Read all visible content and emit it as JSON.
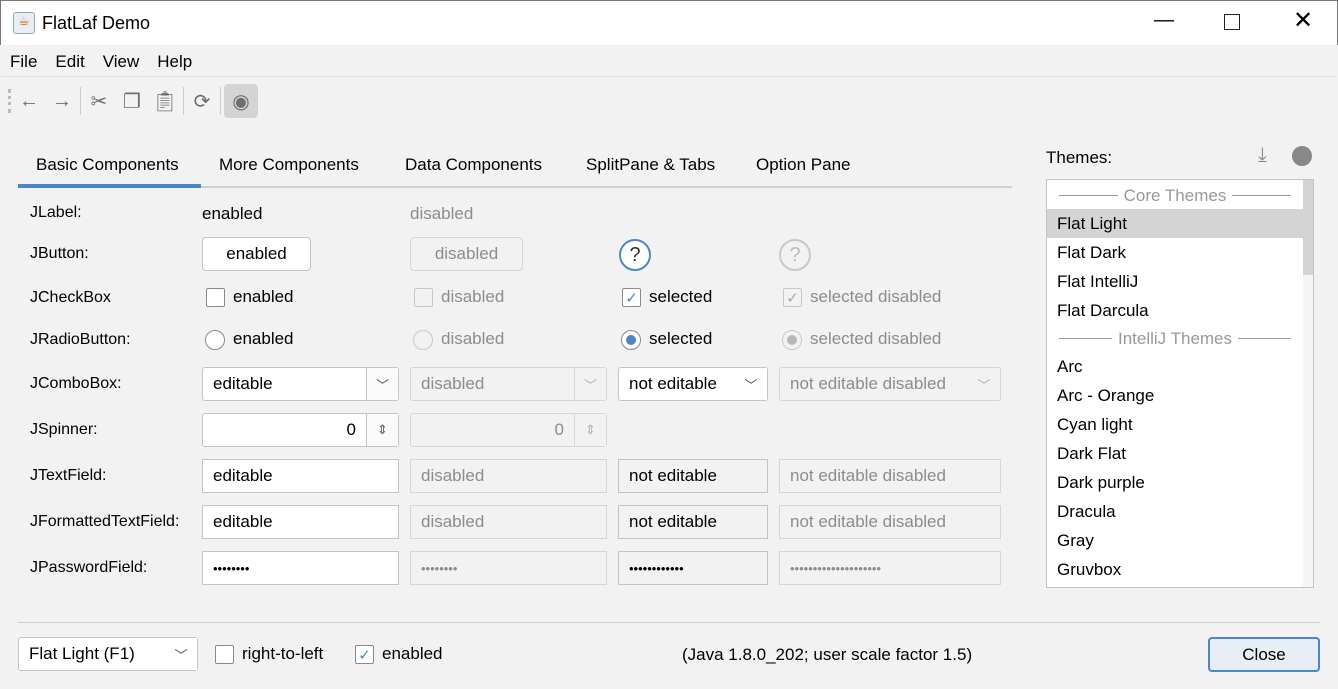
{
  "window": {
    "title": "FlatLaf Demo"
  },
  "menu": [
    "File",
    "Edit",
    "View",
    "Help"
  ],
  "toolbar": {
    "icons": [
      "back-icon",
      "forward-icon",
      "cut-icon",
      "copy-icon",
      "paste-icon",
      "refresh-icon",
      "eye-icon"
    ]
  },
  "tabs": [
    "Basic Components",
    "More Components",
    "Data Components",
    "SplitPane & Tabs",
    "Option Pane"
  ],
  "active_tab": 0,
  "rows": {
    "label": {
      "name": "JLabel:",
      "enabled": "enabled",
      "disabled": "disabled"
    },
    "button": {
      "name": "JButton:",
      "enabled": "enabled",
      "disabled": "disabled",
      "help": "?"
    },
    "checkbox": {
      "name": "JCheckBox",
      "enabled": "enabled",
      "disabled": "disabled",
      "selected": "selected",
      "selected_disabled": "selected disabled"
    },
    "radio": {
      "name": "JRadioButton:",
      "enabled": "enabled",
      "disabled": "disabled",
      "selected": "selected",
      "selected_disabled": "selected disabled"
    },
    "combo": {
      "name": "JComboBox:",
      "editable": "editable",
      "disabled": "disabled",
      "not_editable": "not editable",
      "not_editable_disabled": "not editable disabled"
    },
    "spinner": {
      "name": "JSpinner:",
      "value": "0",
      "disabled_value": "0"
    },
    "textfield": {
      "name": "JTextField:",
      "editable": "editable",
      "disabled": "disabled",
      "not_editable": "not editable",
      "not_editable_disabled": "not editable disabled"
    },
    "formatted": {
      "name": "JFormattedTextField:",
      "editable": "editable",
      "disabled": "disabled",
      "not_editable": "not editable",
      "not_editable_disabled": "not editable disabled"
    },
    "password": {
      "name": "JPasswordField:",
      "editable": "••••••••",
      "disabled": "••••••••",
      "not_editable": "••••••••••••",
      "not_editable_disabled": "••••••••••••••••••••"
    }
  },
  "themes": {
    "label": "Themes:",
    "selected": "Flat Light",
    "items": [
      {
        "header": "Core Themes"
      },
      {
        "name": "Flat Light"
      },
      {
        "name": "Flat Dark"
      },
      {
        "name": "Flat IntelliJ"
      },
      {
        "name": "Flat Darcula"
      },
      {
        "header": "IntelliJ Themes"
      },
      {
        "name": "Arc"
      },
      {
        "name": "Arc - Orange"
      },
      {
        "name": "Cyan light"
      },
      {
        "name": "Dark Flat"
      },
      {
        "name": "Dark purple"
      },
      {
        "name": "Dracula"
      },
      {
        "name": "Gray"
      },
      {
        "name": "Gruvbox"
      }
    ]
  },
  "bottom": {
    "theme_combo": "Flat Light (F1)",
    "rtl": "right-to-left",
    "rtl_checked": false,
    "enabled": "enabled",
    "enabled_checked": true,
    "info": "(Java 1.8.0_202;  user scale factor 1.5)",
    "close": "Close"
  },
  "colors": {
    "accent": "#4a86c8",
    "selection": "#d4d4d4"
  }
}
